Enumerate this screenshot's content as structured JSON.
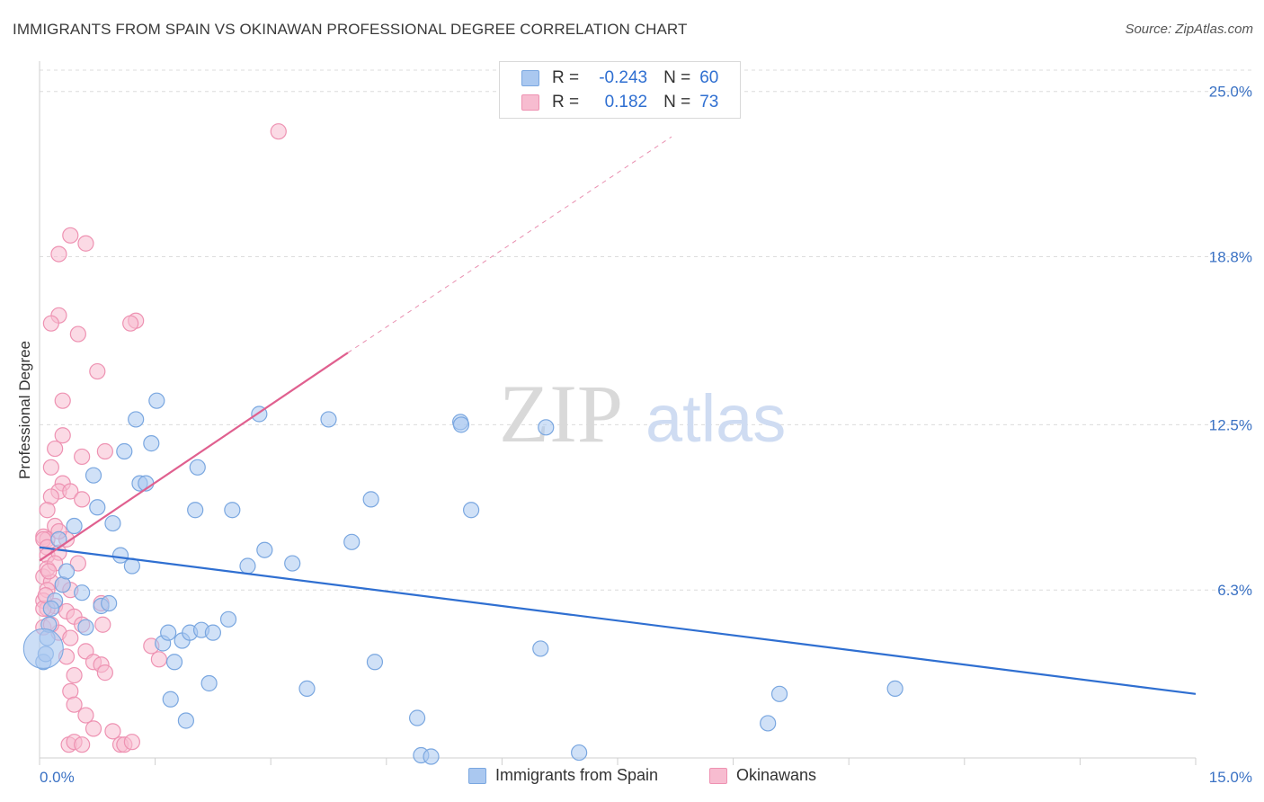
{
  "title": "IMMIGRANTS FROM SPAIN VS OKINAWAN PROFESSIONAL DEGREE CORRELATION CHART",
  "source": "Source: ZipAtlas.com",
  "watermark": {
    "zip": "ZIP",
    "atlas": "atlas"
  },
  "legend": {
    "rows": [
      {
        "r_label": "R =",
        "r_value": "-0.243",
        "n_label": "N =",
        "n_value": "60",
        "color": "#aac8f0",
        "border": "#7aa7e0"
      },
      {
        "r_label": "R =",
        "r_value": "0.182",
        "n_label": "N =",
        "n_value": "73",
        "color": "#f7bcd0",
        "border": "#ee92b2"
      }
    ]
  },
  "bottom_legend": {
    "spain": "Immigrants from Spain",
    "okinawan": "Okinawans"
  },
  "chart_data": {
    "type": "scatter",
    "title": "IMMIGRANTS FROM SPAIN VS OKINAWAN PROFESSIONAL DEGREE CORRELATION CHART",
    "xlabel": "",
    "ylabel": "Professional Degree",
    "xlim": [
      0,
      15
    ],
    "ylim": [
      0,
      25.8
    ],
    "x_tick_labels": [
      "0.0%",
      "15.0%"
    ],
    "y_ticks": [
      6.3,
      12.5,
      18.8,
      25.0
    ],
    "y_tick_labels": [
      "6.3%",
      "12.5%",
      "18.8%",
      "25.0%"
    ],
    "grid": true,
    "colors": {
      "spain": "#2f6fd1",
      "okinawan": "#e0608f",
      "spain_fill": "#aac8f0",
      "okinawan_fill": "#f7bcd0"
    },
    "series": [
      {
        "name": "Immigrants from Spain",
        "trend": {
          "x": [
            0,
            15
          ],
          "y": [
            7.9,
            2.4
          ],
          "dashed_to": null
        },
        "points": [
          [
            0.05,
            3.6
          ],
          [
            0.1,
            4.5
          ],
          [
            0.12,
            5.0
          ],
          [
            0.2,
            5.9
          ],
          [
            0.25,
            8.2
          ],
          [
            0.3,
            6.5
          ],
          [
            0.35,
            7.0
          ],
          [
            0.45,
            8.7
          ],
          [
            0.55,
            6.2
          ],
          [
            0.6,
            4.9
          ],
          [
            0.7,
            10.6
          ],
          [
            0.75,
            9.4
          ],
          [
            0.8,
            5.7
          ],
          [
            0.9,
            5.8
          ],
          [
            0.95,
            8.8
          ],
          [
            1.05,
            7.6
          ],
          [
            1.1,
            11.5
          ],
          [
            1.2,
            7.2
          ],
          [
            1.25,
            12.7
          ],
          [
            1.3,
            10.3
          ],
          [
            1.38,
            10.3
          ],
          [
            1.45,
            11.8
          ],
          [
            1.52,
            13.4
          ],
          [
            1.6,
            4.3
          ],
          [
            1.67,
            4.7
          ],
          [
            1.7,
            2.2
          ],
          [
            1.75,
            3.6
          ],
          [
            1.85,
            4.4
          ],
          [
            1.9,
            1.4
          ],
          [
            1.95,
            4.7
          ],
          [
            2.02,
            9.3
          ],
          [
            2.05,
            10.9
          ],
          [
            2.1,
            4.8
          ],
          [
            2.2,
            2.8
          ],
          [
            2.25,
            4.7
          ],
          [
            2.45,
            5.2
          ],
          [
            2.5,
            9.3
          ],
          [
            2.7,
            7.2
          ],
          [
            2.85,
            12.9
          ],
          [
            2.92,
            7.8
          ],
          [
            3.28,
            7.3
          ],
          [
            3.47,
            2.6
          ],
          [
            3.75,
            12.7
          ],
          [
            4.05,
            8.1
          ],
          [
            4.3,
            9.7
          ],
          [
            4.35,
            3.6
          ],
          [
            4.9,
            1.5
          ],
          [
            4.95,
            0.1
          ],
          [
            5.08,
            0.05
          ],
          [
            5.46,
            12.6
          ],
          [
            5.47,
            12.5
          ],
          [
            5.6,
            9.3
          ],
          [
            6.5,
            4.1
          ],
          [
            6.57,
            12.4
          ],
          [
            7.0,
            0.2
          ],
          [
            9.6,
            2.4
          ],
          [
            9.45,
            1.3
          ],
          [
            11.1,
            2.6
          ],
          [
            0.08,
            3.9
          ],
          [
            0.15,
            5.6
          ]
        ],
        "large_point": [
          0.05,
          4.1
        ]
      },
      {
        "name": "Okinawans",
        "trend": {
          "x": [
            0,
            4.0
          ],
          "y": [
            7.4,
            15.2
          ],
          "dashed_to": [
            8.2,
            23.3
          ]
        },
        "points": [
          [
            3.1,
            23.5
          ],
          [
            0.4,
            19.6
          ],
          [
            0.6,
            19.3
          ],
          [
            0.25,
            18.9
          ],
          [
            1.25,
            16.4
          ],
          [
            0.25,
            16.6
          ],
          [
            1.18,
            16.3
          ],
          [
            0.15,
            16.3
          ],
          [
            0.5,
            15.9
          ],
          [
            0.75,
            14.5
          ],
          [
            0.3,
            13.4
          ],
          [
            0.3,
            12.1
          ],
          [
            0.2,
            11.6
          ],
          [
            0.55,
            11.3
          ],
          [
            0.85,
            11.5
          ],
          [
            0.15,
            10.9
          ],
          [
            0.3,
            10.3
          ],
          [
            0.25,
            10.0
          ],
          [
            0.4,
            10.0
          ],
          [
            0.55,
            9.7
          ],
          [
            0.15,
            9.8
          ],
          [
            0.2,
            8.7
          ],
          [
            0.05,
            8.3
          ],
          [
            0.1,
            8.2
          ],
          [
            0.05,
            8.2
          ],
          [
            0.1,
            7.9
          ],
          [
            0.1,
            7.6
          ],
          [
            0.25,
            7.7
          ],
          [
            0.5,
            7.3
          ],
          [
            0.05,
            6.8
          ],
          [
            0.15,
            6.6
          ],
          [
            0.3,
            6.5
          ],
          [
            0.4,
            6.3
          ],
          [
            0.1,
            6.3
          ],
          [
            0.05,
            5.9
          ],
          [
            0.2,
            5.7
          ],
          [
            0.1,
            5.6
          ],
          [
            0.35,
            5.5
          ],
          [
            0.45,
            5.3
          ],
          [
            0.55,
            5.0
          ],
          [
            0.8,
            5.8
          ],
          [
            0.82,
            5.0
          ],
          [
            0.05,
            4.9
          ],
          [
            0.25,
            4.7
          ],
          [
            0.4,
            4.5
          ],
          [
            0.35,
            3.8
          ],
          [
            0.6,
            4.0
          ],
          [
            0.7,
            3.6
          ],
          [
            0.8,
            3.5
          ],
          [
            0.85,
            3.2
          ],
          [
            0.45,
            3.1
          ],
          [
            0.4,
            2.5
          ],
          [
            0.45,
            2.0
          ],
          [
            0.6,
            1.6
          ],
          [
            0.7,
            1.1
          ],
          [
            0.95,
            1.0
          ],
          [
            1.05,
            0.5
          ],
          [
            1.1,
            0.5
          ],
          [
            1.2,
            0.6
          ],
          [
            0.38,
            0.5
          ],
          [
            0.45,
            0.6
          ],
          [
            0.55,
            0.5
          ],
          [
            1.55,
            3.7
          ],
          [
            1.45,
            4.2
          ],
          [
            0.05,
            5.6
          ],
          [
            0.1,
            7.1
          ],
          [
            0.2,
            7.3
          ],
          [
            0.15,
            5.0
          ],
          [
            0.08,
            6.1
          ],
          [
            0.35,
            8.2
          ],
          [
            0.25,
            8.5
          ],
          [
            0.1,
            9.3
          ],
          [
            0.12,
            7.0
          ]
        ]
      }
    ]
  }
}
